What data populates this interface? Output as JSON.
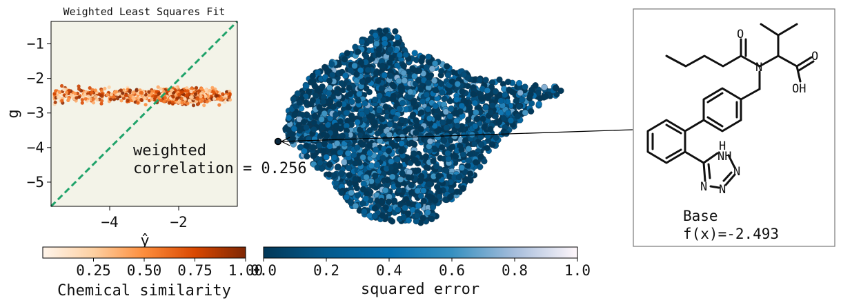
{
  "chart_data": [
    {
      "type": "scatter",
      "title": "Weighted Least Squares Fit",
      "xlabel": "ŷ",
      "ylabel": "g",
      "xlim": [
        -5.7,
        -0.3
      ],
      "ylim": [
        -5.7,
        -0.35
      ],
      "xticks": [
        -4,
        -2
      ],
      "yticks": [
        -1,
        -2,
        -3,
        -4,
        -5
      ],
      "background": "#f3f3e8",
      "diagonal_color": "#1fa36a",
      "annotation": "weighted\ncorrelation = 0.256",
      "annotation_line1": "weighted",
      "annotation_line2": "correlation = 0.256",
      "series": [
        {
          "x_range": [
            -5.6,
            -0.5
          ],
          "y_center": -2.5,
          "y_spread": [
            -2.9,
            -2.1
          ],
          "point_count": 1100,
          "color_by": "Chemical similarity"
        }
      ]
    },
    {
      "type": "scatter",
      "description_free": true,
      "point_count": 2600,
      "color_by": "squared error",
      "highlight_label": "Base",
      "highlight_value": "f(x)=-2.493"
    }
  ],
  "colorbars": {
    "similarity": {
      "label": "Chemical similarity",
      "ticks": [
        "0.25",
        "0.50",
        "0.75",
        "1.00"
      ],
      "tick_values": [
        0.25,
        0.5,
        0.75,
        1.0
      ],
      "range": [
        0.0,
        1.0
      ],
      "colors": [
        "#fff5eb",
        "#fdd0a2",
        "#fd8d3c",
        "#d94801",
        "#7f2704"
      ]
    },
    "error": {
      "label": "squared error",
      "ticks": [
        "0.0",
        "0.2",
        "0.4",
        "0.6",
        "0.8",
        "1.0"
      ],
      "tick_values": [
        0.0,
        0.2,
        0.4,
        0.6,
        0.8,
        1.0
      ],
      "range": [
        0.0,
        1.0
      ],
      "colors": [
        "#023858",
        "#045a8d",
        "#0570b0",
        "#3690c0",
        "#a6bddb",
        "#fff7fb"
      ]
    }
  },
  "molecule": {
    "caption_line1": "Base",
    "caption_line2": "f(x)=-2.493",
    "atom_labels": {
      "o1": "O",
      "o2": "O",
      "oh": "OH",
      "n_amide": "N",
      "nh": "NH",
      "h": "H",
      "n2": "N",
      "n3": "N",
      "n4": "N"
    }
  }
}
